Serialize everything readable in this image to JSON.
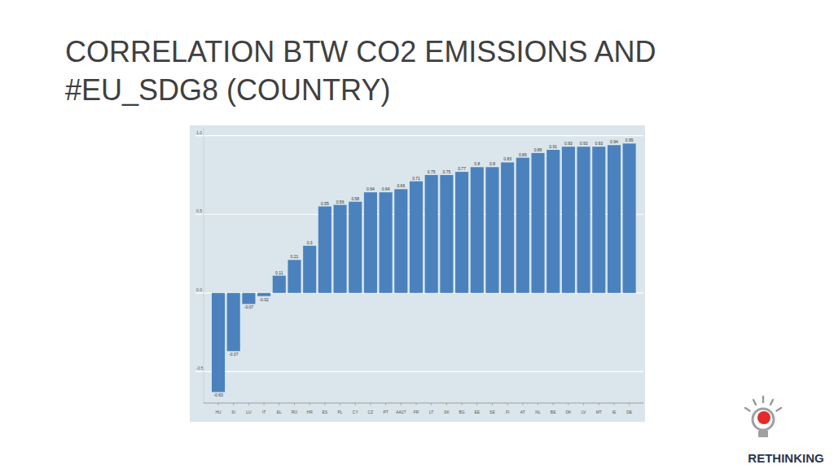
{
  "chart_data": {
    "type": "bar",
    "title": "CORRELATION BTW CO2 EMISSIONS AND #EU_SDG8 (COUNTRY)",
    "categories": [
      "HU",
      "SI",
      "LU",
      "IT",
      "EL",
      "RO",
      "HR",
      "ES",
      "PL",
      "CY",
      "CZ",
      "PT",
      "AA27",
      "FR",
      "LT",
      "SK",
      "BG",
      "EE",
      "SE",
      "FI",
      "AT",
      "NL",
      "BE",
      "DK",
      "LV",
      "MT",
      "IE",
      "DE"
    ],
    "values": [
      -0.63,
      -0.37,
      -0.07,
      -0.02,
      0.11,
      0.21,
      0.3,
      0.55,
      0.56,
      0.58,
      0.64,
      0.64,
      0.66,
      0.71,
      0.75,
      0.75,
      0.77,
      0.8,
      0.8,
      0.83,
      0.86,
      0.89,
      0.91,
      0.93,
      0.93,
      0.93,
      0.94,
      0.95
    ],
    "color": "#4b82bd",
    "ylim": [
      -0.7,
      1.05
    ],
    "yticks": [
      -0.5,
      {
        "value": 0,
        "label": "0.0"
      },
      0.5,
      {
        "value": 1,
        "label": "1.0"
      }
    ],
    "grid": true,
    "data_labels": true
  },
  "logo": {
    "text": "RETHINKING"
  }
}
